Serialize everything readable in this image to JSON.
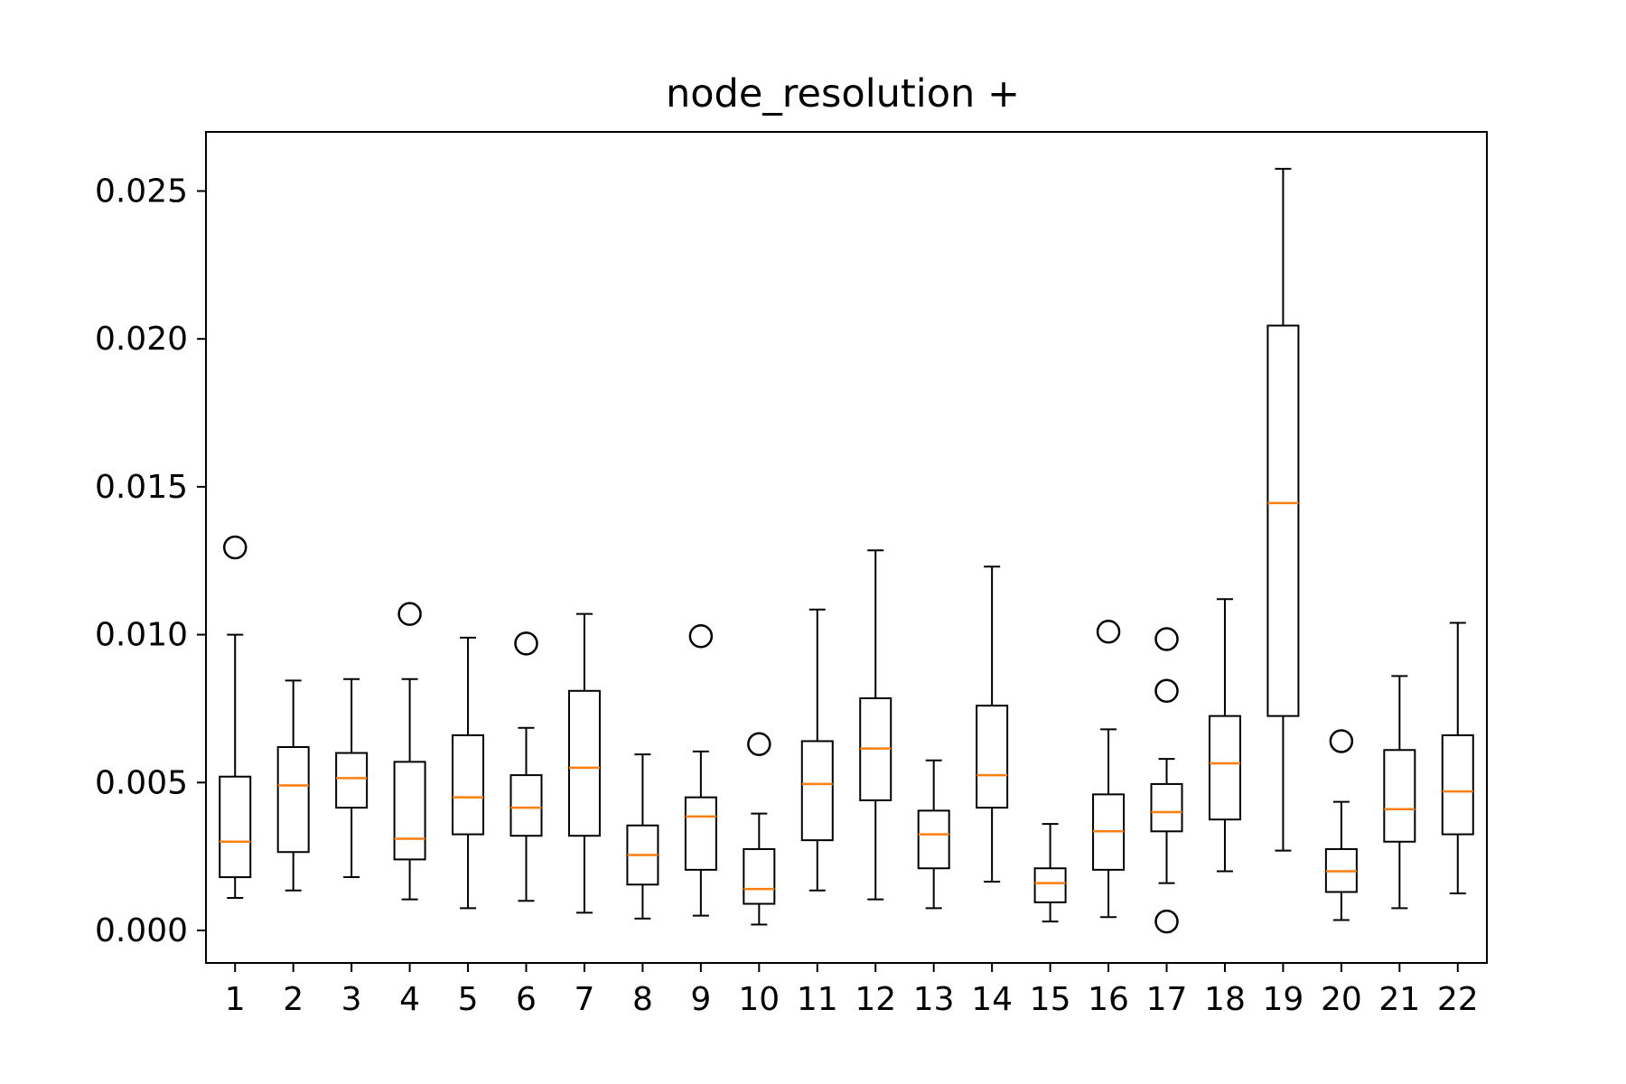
{
  "chart_data": {
    "type": "box",
    "title": "node_resolution +",
    "xlabel": "",
    "ylabel": "",
    "ylim": [
      -0.0011,
      0.027
    ],
    "grid": false,
    "legend": "none",
    "yticks": [
      0.0,
      0.005,
      0.01,
      0.015,
      0.02,
      0.025
    ],
    "ytick_labels": [
      "0.000",
      "0.005",
      "0.010",
      "0.015",
      "0.020",
      "0.025"
    ],
    "categories": [
      "1",
      "2",
      "3",
      "4",
      "5",
      "6",
      "7",
      "8",
      "9",
      "10",
      "11",
      "12",
      "13",
      "14",
      "15",
      "16",
      "17",
      "18",
      "19",
      "20",
      "21",
      "22"
    ],
    "colors": {
      "box": "#000000",
      "median": "#ff7f0e",
      "flier": "#000000"
    },
    "boxes": [
      {
        "label": "1",
        "whisker_low": 0.0011,
        "q1": 0.0018,
        "median": 0.003,
        "q3": 0.0052,
        "whisker_high": 0.01,
        "fliers": [
          0.01295
        ]
      },
      {
        "label": "2",
        "whisker_low": 0.00135,
        "q1": 0.00265,
        "median": 0.0049,
        "q3": 0.0062,
        "whisker_high": 0.00845,
        "fliers": []
      },
      {
        "label": "3",
        "whisker_low": 0.0018,
        "q1": 0.00415,
        "median": 0.00515,
        "q3": 0.006,
        "whisker_high": 0.0085,
        "fliers": []
      },
      {
        "label": "4",
        "whisker_low": 0.00105,
        "q1": 0.0024,
        "median": 0.0031,
        "q3": 0.0057,
        "whisker_high": 0.0085,
        "fliers": [
          0.0107
        ]
      },
      {
        "label": "5",
        "whisker_low": 0.00075,
        "q1": 0.00325,
        "median": 0.0045,
        "q3": 0.0066,
        "whisker_high": 0.0099,
        "fliers": []
      },
      {
        "label": "6",
        "whisker_low": 0.001,
        "q1": 0.0032,
        "median": 0.00415,
        "q3": 0.00525,
        "whisker_high": 0.00685,
        "fliers": [
          0.0097
        ]
      },
      {
        "label": "7",
        "whisker_low": 0.0006,
        "q1": 0.0032,
        "median": 0.0055,
        "q3": 0.0081,
        "whisker_high": 0.0107,
        "fliers": []
      },
      {
        "label": "8",
        "whisker_low": 0.0004,
        "q1": 0.00155,
        "median": 0.00255,
        "q3": 0.00355,
        "whisker_high": 0.00595,
        "fliers": []
      },
      {
        "label": "9",
        "whisker_low": 0.0005,
        "q1": 0.00205,
        "median": 0.00385,
        "q3": 0.0045,
        "whisker_high": 0.00605,
        "fliers": [
          0.00995
        ]
      },
      {
        "label": "10",
        "whisker_low": 0.0002,
        "q1": 0.0009,
        "median": 0.0014,
        "q3": 0.00275,
        "whisker_high": 0.00395,
        "fliers": [
          0.0063
        ]
      },
      {
        "label": "11",
        "whisker_low": 0.00135,
        "q1": 0.00305,
        "median": 0.00495,
        "q3": 0.0064,
        "whisker_high": 0.01085,
        "fliers": []
      },
      {
        "label": "12",
        "whisker_low": 0.00105,
        "q1": 0.0044,
        "median": 0.00615,
        "q3": 0.00785,
        "whisker_high": 0.01285,
        "fliers": []
      },
      {
        "label": "13",
        "whisker_low": 0.00075,
        "q1": 0.0021,
        "median": 0.00325,
        "q3": 0.00405,
        "whisker_high": 0.00575,
        "fliers": []
      },
      {
        "label": "14",
        "whisker_low": 0.00165,
        "q1": 0.00415,
        "median": 0.00525,
        "q3": 0.0076,
        "whisker_high": 0.0123,
        "fliers": []
      },
      {
        "label": "15",
        "whisker_low": 0.0003,
        "q1": 0.00095,
        "median": 0.0016,
        "q3": 0.0021,
        "whisker_high": 0.0036,
        "fliers": []
      },
      {
        "label": "16",
        "whisker_low": 0.00045,
        "q1": 0.00205,
        "median": 0.00335,
        "q3": 0.0046,
        "whisker_high": 0.0068,
        "fliers": [
          0.0101
        ]
      },
      {
        "label": "17",
        "whisker_low": 0.0016,
        "q1": 0.00335,
        "median": 0.004,
        "q3": 0.00495,
        "whisker_high": 0.0058,
        "fliers": [
          0.00985,
          0.0081,
          0.0003
        ]
      },
      {
        "label": "18",
        "whisker_low": 0.002,
        "q1": 0.00375,
        "median": 0.00565,
        "q3": 0.00725,
        "whisker_high": 0.0112,
        "fliers": []
      },
      {
        "label": "19",
        "whisker_low": 0.0027,
        "q1": 0.00725,
        "median": 0.01445,
        "q3": 0.02045,
        "whisker_high": 0.02575,
        "fliers": []
      },
      {
        "label": "20",
        "whisker_low": 0.00035,
        "q1": 0.0013,
        "median": 0.002,
        "q3": 0.00275,
        "whisker_high": 0.00435,
        "fliers": [
          0.0064
        ]
      },
      {
        "label": "21",
        "whisker_low": 0.00075,
        "q1": 0.003,
        "median": 0.0041,
        "q3": 0.0061,
        "whisker_high": 0.0086,
        "fliers": []
      },
      {
        "label": "22",
        "whisker_low": 0.00125,
        "q1": 0.00325,
        "median": 0.0047,
        "q3": 0.0066,
        "whisker_high": 0.0104,
        "fliers": []
      }
    ]
  }
}
